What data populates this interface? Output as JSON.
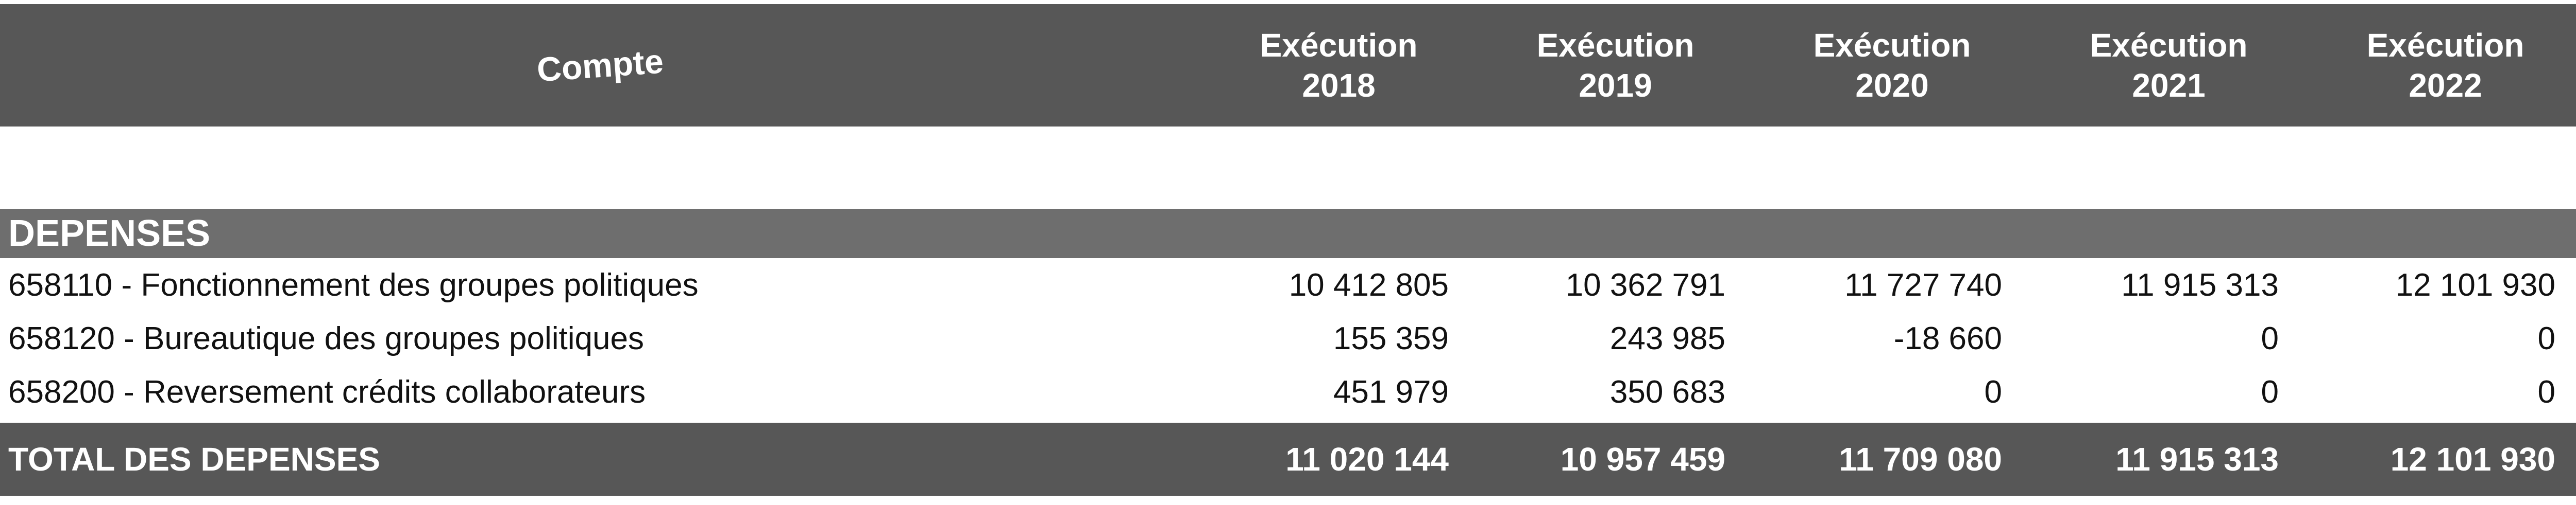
{
  "table": {
    "header": {
      "compte_label": "Compte",
      "columns": [
        {
          "line1": "Exécution",
          "line2": "2018"
        },
        {
          "line1": "Exécution",
          "line2": "2019"
        },
        {
          "line1": "Exécution",
          "line2": "2020"
        },
        {
          "line1": "Exécution",
          "line2": "2021"
        },
        {
          "line1": "Exécution",
          "line2": "2022"
        }
      ]
    },
    "section_label": "DEPENSES",
    "rows": [
      {
        "label": "658110 - Fonctionnement des groupes politiques",
        "values": [
          "10 412 805",
          "10 362 791",
          "11 727 740",
          "11 915 313",
          "12 101 930"
        ]
      },
      {
        "label": "658120 - Bureautique des groupes politiques",
        "values": [
          "155 359",
          "243 985",
          "-18 660",
          "0",
          "0"
        ]
      },
      {
        "label": "658200 - Reversement crédits collaborateurs",
        "values": [
          "451 979",
          "350 683",
          "0",
          "0",
          "0"
        ]
      }
    ],
    "total": {
      "label": "TOTAL DES DEPENSES",
      "values": [
        "11 020 144",
        "10 957 459",
        "11 709 080",
        "11 915 313",
        "12 101 930"
      ]
    }
  },
  "colors": {
    "header_bg": "#575757",
    "section_bg": "#6e6e6e",
    "total_bg": "#575757",
    "text_light": "#ffffff",
    "text_dark": "#111111"
  }
}
